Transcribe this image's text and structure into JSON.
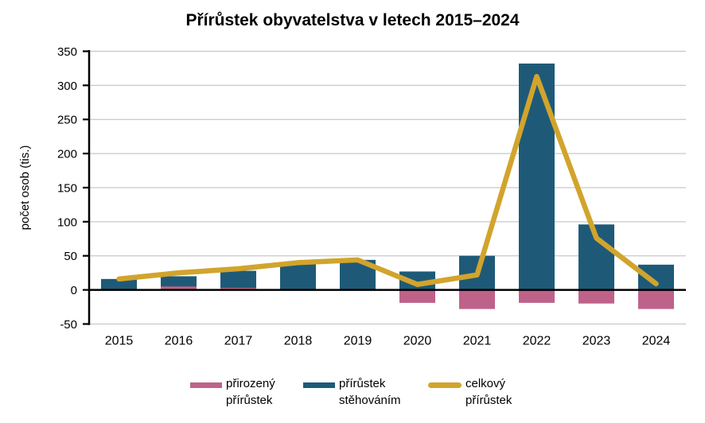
{
  "chart_data": {
    "type": "bar+line",
    "title": "Přírůstek obyvatelstva v letech 2015–2024",
    "ylabel": "počet osob (tis.)",
    "xlabel": "",
    "ylim": [
      -50,
      350
    ],
    "y_ticks": [
      350,
      300,
      250,
      200,
      150,
      100,
      50,
      0,
      -50
    ],
    "grid": true,
    "zero_line": true,
    "legend_position": "bottom",
    "categories": [
      "2015",
      "2016",
      "2017",
      "2018",
      "2019",
      "2020",
      "2021",
      "2022",
      "2023",
      "2024"
    ],
    "series": [
      {
        "name": "přirozený přírůstek",
        "legend_lines": [
          "přirozený",
          "přírůstek"
        ],
        "type": "bar",
        "color": "#bf6289",
        "values": [
          0,
          5,
          3,
          1,
          0,
          -19,
          -28,
          -19,
          -20,
          -28
        ]
      },
      {
        "name": "přírůstek stěhováním",
        "legend_lines": [
          "přírůstek",
          "stěhováním"
        ],
        "type": "bar",
        "color": "#1e5a78",
        "values": [
          16,
          20,
          28,
          39,
          44,
          27,
          50,
          332,
          96,
          37
        ]
      },
      {
        "name": "celkový přírůstek",
        "legend_lines": [
          "celkový",
          "přírůstek"
        ],
        "type": "line",
        "color": "#d2a42c",
        "values": [
          16,
          25,
          31,
          40,
          44,
          8,
          22,
          313,
          76,
          9
        ]
      }
    ],
    "axis_color": "#000000",
    "gridline_color": "#c8c8c8",
    "text_color": "#000000"
  }
}
